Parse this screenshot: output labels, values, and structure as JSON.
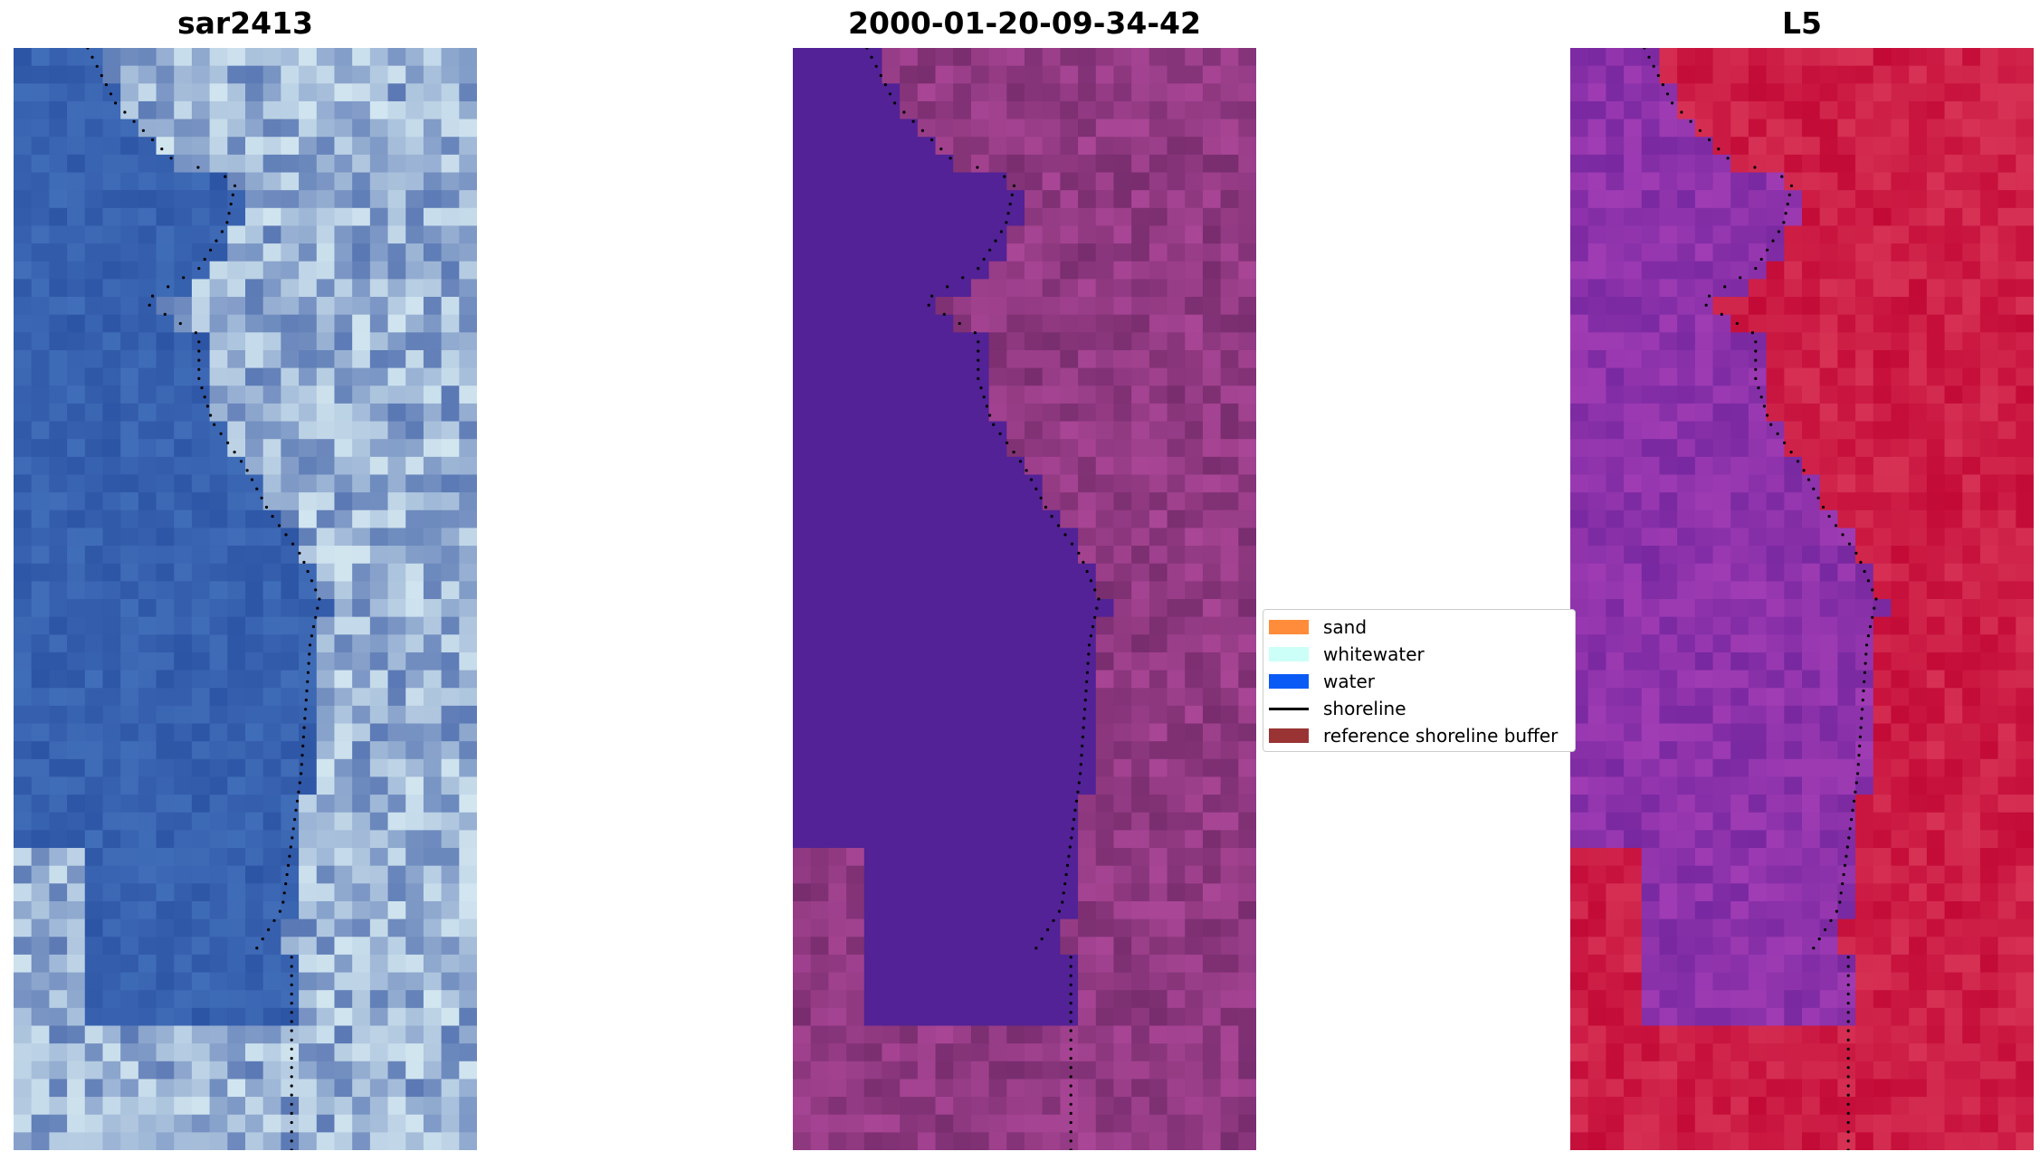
{
  "panels": [
    {
      "title": "sar2413",
      "palette": "rgb",
      "base": [
        52,
        92,
        168
      ]
    },
    {
      "title": "2000-01-20-09-34-42",
      "palette": "class",
      "base": [
        82,
        34,
        150
      ]
    },
    {
      "title": "L5",
      "palette": "index",
      "base": [
        200,
        16,
        58
      ]
    }
  ],
  "legend": {
    "items": [
      {
        "label": "sand",
        "color": "#ff8c3a",
        "kind": "patch"
      },
      {
        "label": "whitewater",
        "color": "#ccfff7",
        "kind": "patch"
      },
      {
        "label": "water",
        "color": "#0a5bf5",
        "kind": "patch"
      },
      {
        "label": "shoreline",
        "color": "#000000",
        "kind": "line"
      },
      {
        "label": "reference shoreline buffer",
        "color": "#9a3434",
        "kind": "patch"
      }
    ]
  }
}
